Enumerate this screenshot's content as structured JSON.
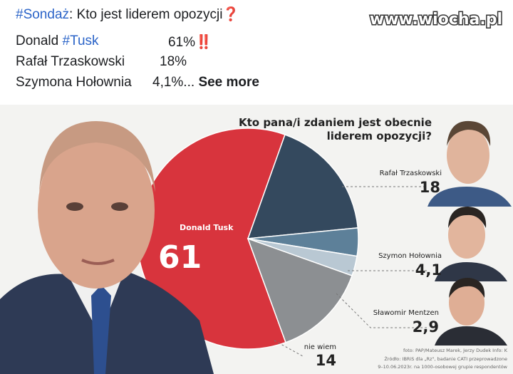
{
  "post": {
    "hashtag": "#Sondaż",
    "title": ": Kto jest liderem opozycji❓",
    "lines": [
      {
        "name": "Donald ",
        "tag": "#Tusk",
        "value": "61%‼️"
      },
      {
        "name": "Rafał Trzaskowski",
        "value": "18%"
      },
      {
        "name": "Szymona Hołownia",
        "value": "4,1%..."
      }
    ],
    "see_more": "See more"
  },
  "watermark": "www.wiocha.pl",
  "chart_data": {
    "type": "pie",
    "title": [
      "Kto pana/i zdaniem jest obecnie",
      "liderem opozycji?"
    ],
    "categories": [
      "Donald Tusk",
      "Rafał Trzaskowski",
      "Szymon Hołownia",
      "Sławomir Mentzen",
      "nie wiem"
    ],
    "values": [
      61,
      18,
      4.1,
      2.9,
      14
    ],
    "value_labels": [
      "61",
      "18",
      "4,1",
      "2,9",
      "14"
    ],
    "colors": [
      "#d8343d",
      "#34495e",
      "#5d8099",
      "#b9c8d3",
      "#8c8f92"
    ],
    "source": [
      "foto: PAP/Mateusz Marek, Jerzy Dudek  Info: K",
      "Źródło: IBRiS dla „Rz\", badanie CATI przeprowadzone",
      "9–10.06.2023r. na 1000-osobowej grupie respondentów"
    ]
  }
}
